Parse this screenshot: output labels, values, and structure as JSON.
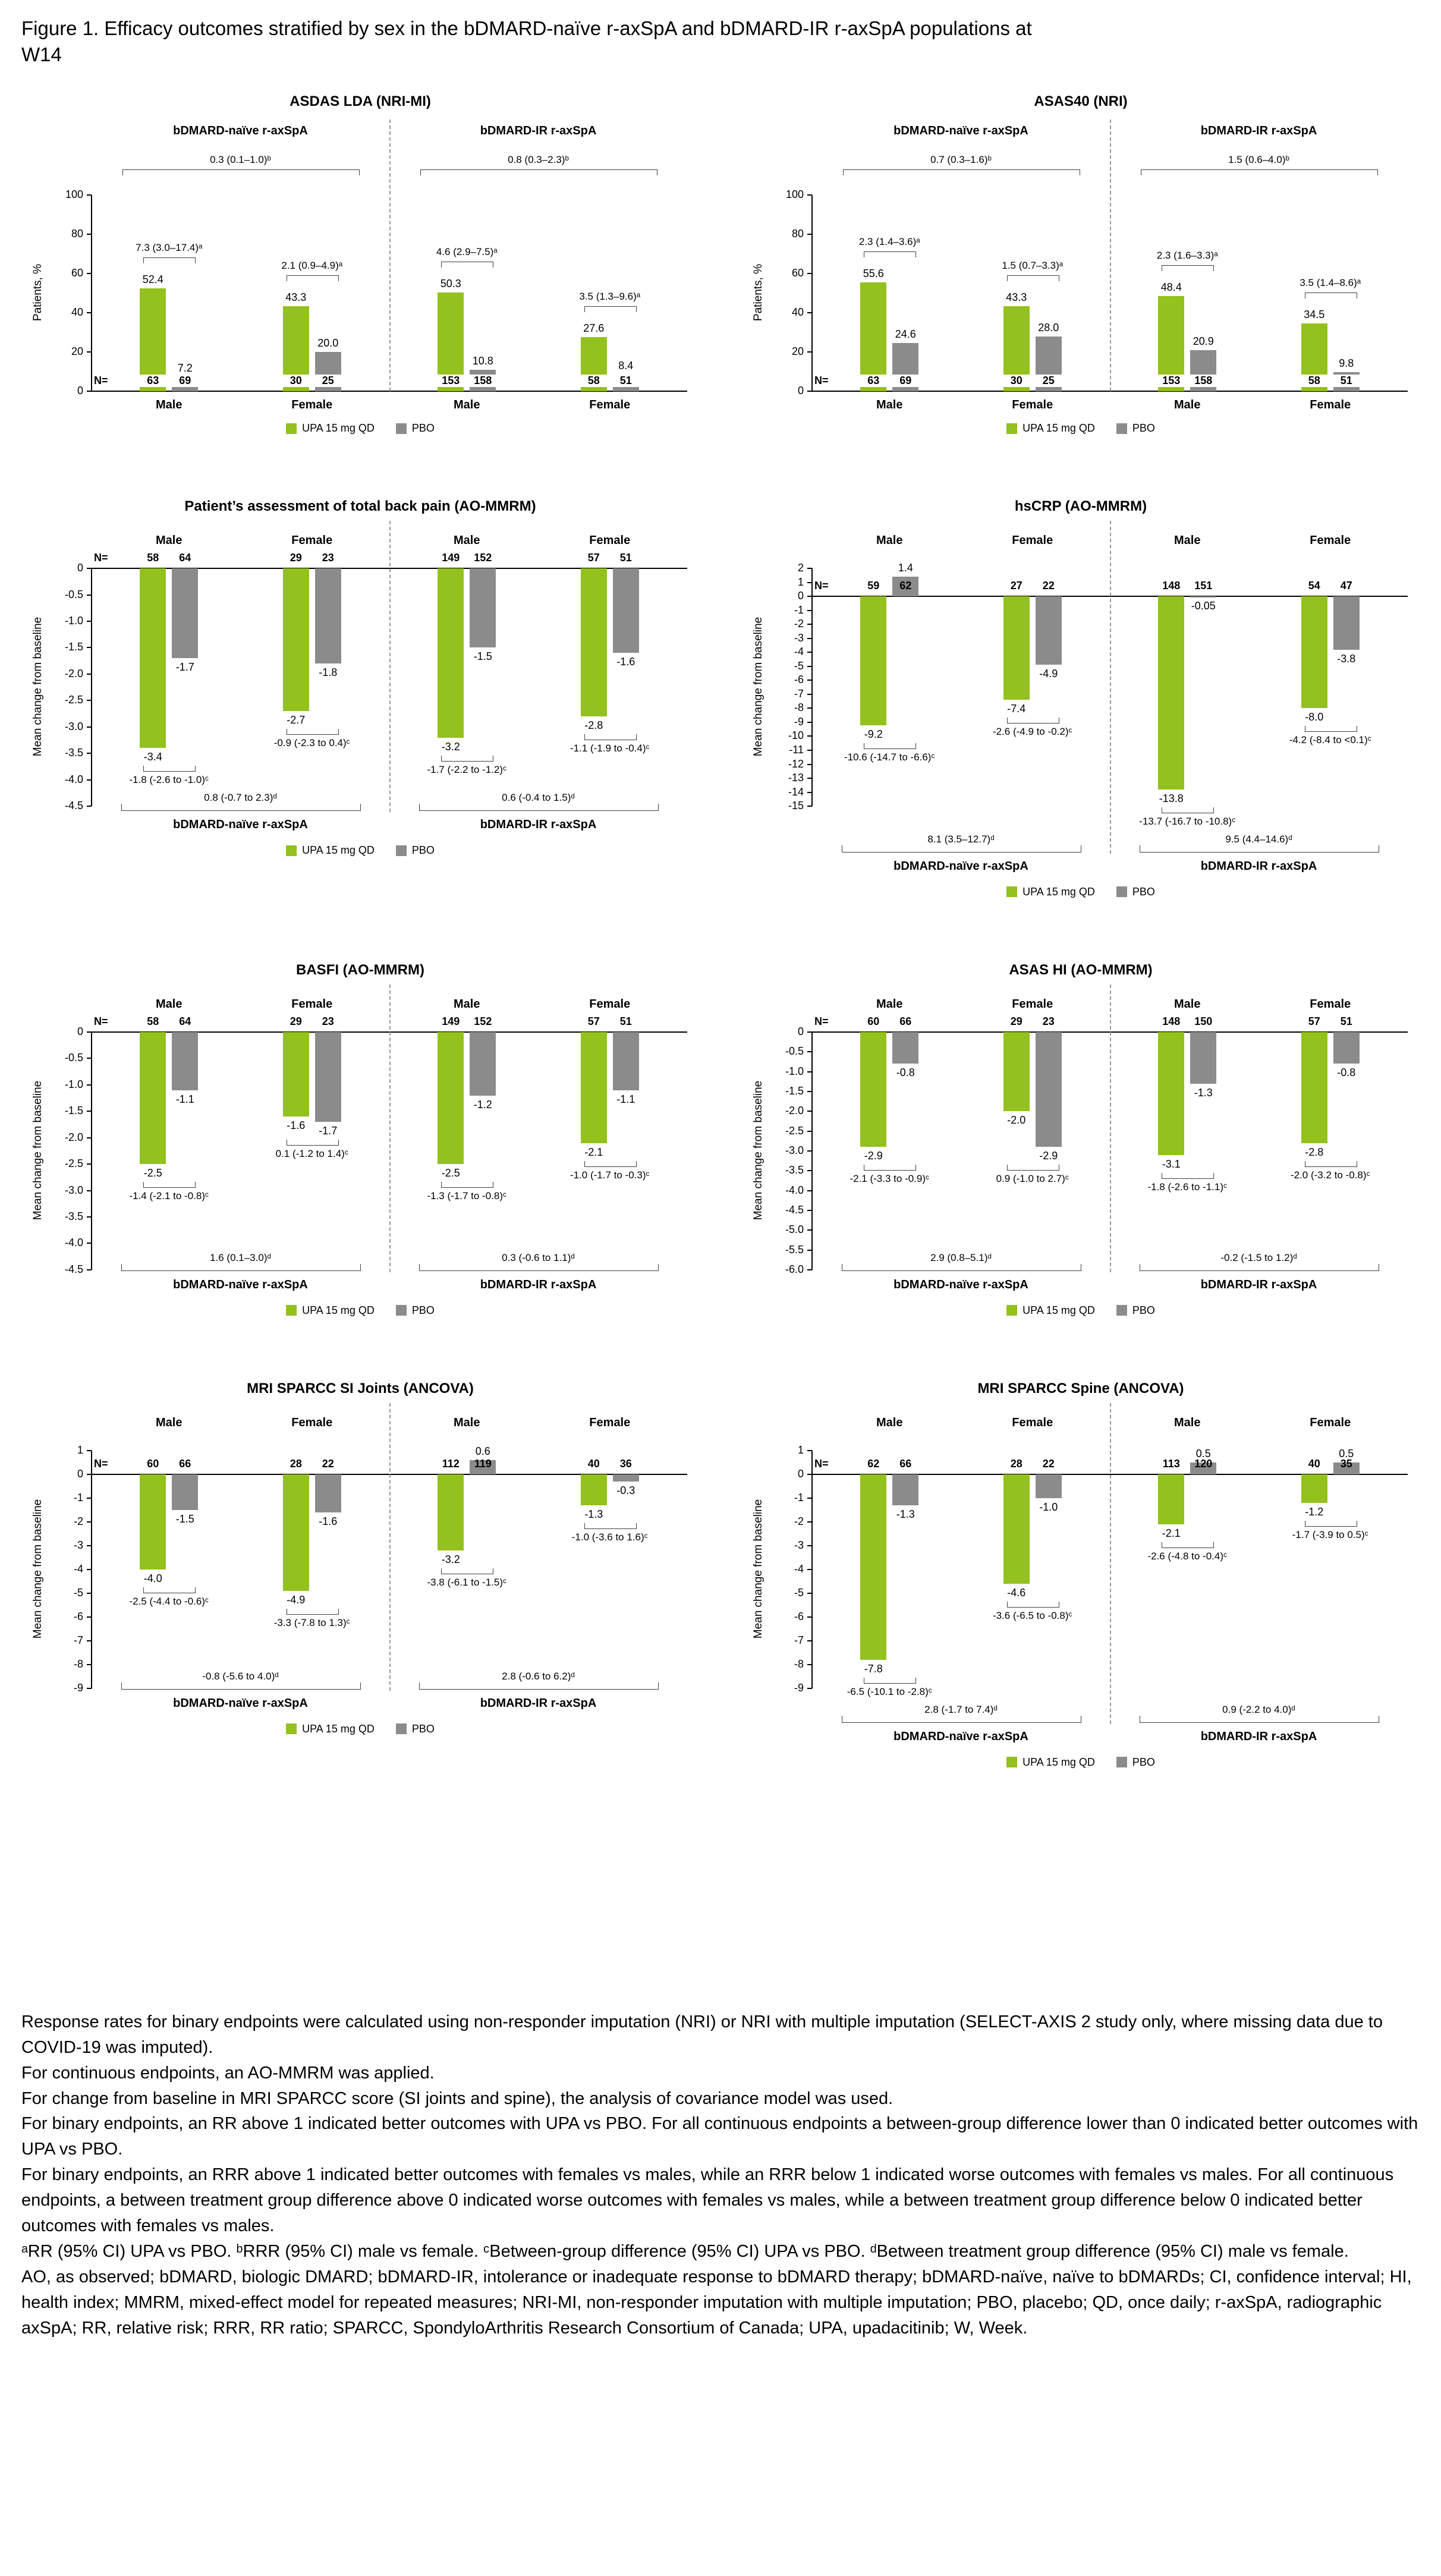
{
  "title": "Figure 1. Efficacy outcomes stratified by sex in the bDMARD-naïve r-axSpA and bDMARD-IR r-axSpA populations at W14",
  "labels": {
    "n_prefix": "N="
  },
  "legend": {
    "upa": "UPA 15 mg QD",
    "pbo": "PBO"
  },
  "colors": {
    "upa": "#93C11E",
    "pbo": "#8B8B8B",
    "bracket": "#3f3f3f"
  },
  "chart_data": [
    {
      "id": "asdas-lda",
      "type": "bar",
      "kind": "binary",
      "title": "ASDAS LDA (NRI-MI)",
      "ylabel": "Patients, %",
      "ymin": 0,
      "ymax": 100,
      "ytick_vals": [
        0,
        20,
        40,
        60,
        80,
        100
      ],
      "ytick_labels": [
        "0",
        "20",
        "40",
        "60",
        "80",
        "100"
      ],
      "populations": [
        {
          "label": "bDMARD-naïve r-axSpA",
          "pop_ann": "0.3 (0.1–1.0)ᵇ",
          "groups": [
            {
              "label": "Male",
              "upa": 52.4,
              "pbo": 7.2,
              "upa_label": "52.4",
              "pbo_label": "7.2",
              "upa_n": "63",
              "pbo_n": "69",
              "ann": "7.3 (3.0–17.4)ᵃ"
            },
            {
              "label": "Female",
              "upa": 43.3,
              "pbo": 20.0,
              "upa_label": "43.3",
              "pbo_label": "20.0",
              "upa_n": "30",
              "pbo_n": "25",
              "ann": "2.1 (0.9–4.9)ᵃ"
            }
          ]
        },
        {
          "label": "bDMARD-IR r-axSpA",
          "pop_ann": "0.8 (0.3–2.3)ᵇ",
          "groups": [
            {
              "label": "Male",
              "upa": 50.3,
              "pbo": 10.8,
              "upa_label": "50.3",
              "pbo_label": "10.8",
              "upa_n": "153",
              "pbo_n": "158",
              "ann": "4.6 (2.9–7.5)ᵃ"
            },
            {
              "label": "Female",
              "upa": 27.6,
              "pbo": 8.4,
              "upa_label": "27.6",
              "pbo_label": "8.4",
              "upa_n": "58",
              "pbo_n": "51",
              "ann": "3.5 (1.3–9.6)ᵃ"
            }
          ]
        }
      ]
    },
    {
      "id": "asas40",
      "type": "bar",
      "kind": "binary",
      "title": "ASAS40 (NRI)",
      "ylabel": "Patients, %",
      "ymin": 0,
      "ymax": 100,
      "ytick_vals": [
        0,
        20,
        40,
        60,
        80,
        100
      ],
      "ytick_labels": [
        "0",
        "20",
        "40",
        "60",
        "80",
        "100"
      ],
      "populations": [
        {
          "label": "bDMARD-naïve r-axSpA",
          "pop_ann": "0.7 (0.3–1.6)ᵇ",
          "groups": [
            {
              "label": "Male",
              "upa": 55.6,
              "pbo": 24.6,
              "upa_label": "55.6",
              "pbo_label": "24.6",
              "upa_n": "63",
              "pbo_n": "69",
              "ann": "2.3 (1.4–3.6)ᵃ"
            },
            {
              "label": "Female",
              "upa": 43.3,
              "pbo": 28.0,
              "upa_label": "43.3",
              "pbo_label": "28.0",
              "upa_n": "30",
              "pbo_n": "25",
              "ann": "1.5 (0.7–3.3)ᵃ"
            }
          ]
        },
        {
          "label": "bDMARD-IR r-axSpA",
          "pop_ann": "1.5 (0.6–4.0)ᵇ",
          "groups": [
            {
              "label": "Male",
              "upa": 48.4,
              "pbo": 20.9,
              "upa_label": "48.4",
              "pbo_label": "20.9",
              "upa_n": "153",
              "pbo_n": "158",
              "ann": "2.3 (1.6–3.3)ᵃ"
            },
            {
              "label": "Female",
              "upa": 34.5,
              "pbo": 9.8,
              "upa_label": "34.5",
              "pbo_label": "9.8",
              "upa_n": "58",
              "pbo_n": "51",
              "ann": "3.5 (1.4–8.6)ᵃ"
            }
          ]
        }
      ]
    },
    {
      "id": "back-pain",
      "type": "bar",
      "kind": "continuous",
      "title": "Patient’s assessment of total back pain (AO-MMRM)",
      "ylabel": "Mean change from baseline",
      "ymin": -4.5,
      "ymax": 0,
      "ytick_vals": [
        0,
        -0.5,
        -1,
        -1.5,
        -2,
        -2.5,
        -3,
        -3.5,
        -4,
        -4.5
      ],
      "ytick_labels": [
        "0",
        "-0.5",
        "-1.0",
        "-1.5",
        "-2.0",
        "-2.5",
        "-3.0",
        "-3.5",
        "-4.0",
        "-4.5"
      ],
      "populations": [
        {
          "label": "bDMARD-naïve r-axSpA",
          "pop_ann": "0.8 (-0.7 to 2.3)ᵈ",
          "groups": [
            {
              "label": "Male",
              "upa": -3.4,
              "pbo": -1.7,
              "upa_label": "-3.4",
              "pbo_label": "-1.7",
              "upa_n": "58",
              "pbo_n": "64",
              "ann": "-1.8 (-2.6 to -1.0)ᶜ"
            },
            {
              "label": "Female",
              "upa": -2.7,
              "pbo": -1.8,
              "upa_label": "-2.7",
              "pbo_label": "-1.8",
              "upa_n": "29",
              "pbo_n": "23",
              "ann": "-0.9 (-2.3 to 0.4)ᶜ"
            }
          ]
        },
        {
          "label": "bDMARD-IR r-axSpA",
          "pop_ann": "0.6 (-0.4 to 1.5)ᵈ",
          "groups": [
            {
              "label": "Male",
              "upa": -3.2,
              "pbo": -1.5,
              "upa_label": "-3.2",
              "pbo_label": "-1.5",
              "upa_n": "149",
              "pbo_n": "152",
              "ann": "-1.7 (-2.2 to -1.2)ᶜ"
            },
            {
              "label": "Female",
              "upa": -2.8,
              "pbo": -1.6,
              "upa_label": "-2.8",
              "pbo_label": "-1.6",
              "upa_n": "57",
              "pbo_n": "51",
              "ann": "-1.1 (-1.9 to -0.4)ᶜ"
            }
          ]
        }
      ]
    },
    {
      "id": "hscrp",
      "type": "bar",
      "kind": "continuous",
      "title": "hsCRP (AO-MMRM)",
      "ylabel": "Mean change from baseline",
      "ymin": -15,
      "ymax": 2,
      "ytick_vals": [
        2,
        1,
        0,
        -1,
        -2,
        -3,
        -4,
        -5,
        -6,
        -7,
        -8,
        -9,
        -10,
        -11,
        -12,
        -13,
        -14,
        -15
      ],
      "ytick_labels": [
        "2",
        "1",
        "0",
        "-1",
        "-2",
        "-3",
        "-4",
        "-5",
        "-6",
        "-7",
        "-8",
        "-9",
        "-10",
        "-11",
        "-12",
        "-13",
        "-14",
        "-15"
      ],
      "populations": [
        {
          "label": "bDMARD-naïve r-axSpA",
          "pop_ann": "8.1 (3.5–12.7)ᵈ",
          "groups": [
            {
              "label": "Male",
              "upa": -9.2,
              "pbo": 1.4,
              "upa_label": "-9.2",
              "pbo_label": "1.4",
              "upa_n": "59",
              "pbo_n": "62",
              "ann": "-10.6 (-14.7 to -6.6)ᶜ"
            },
            {
              "label": "Female",
              "upa": -7.4,
              "pbo": -4.9,
              "upa_label": "-7.4",
              "pbo_label": "-4.9",
              "upa_n": "27",
              "pbo_n": "22",
              "ann": "-2.6 (-4.9 to -0.2)ᶜ"
            }
          ]
        },
        {
          "label": "bDMARD-IR r-axSpA",
          "pop_ann": "9.5 (4.4–14.6)ᵈ",
          "groups": [
            {
              "label": "Male",
              "upa": -13.8,
              "pbo": -0.05,
              "upa_label": "-13.8",
              "pbo_label": "-0.05",
              "upa_n": "148",
              "pbo_n": "151",
              "ann": "-13.7 (-16.7 to -10.8)ᶜ"
            },
            {
              "label": "Female",
              "upa": -8.0,
              "pbo": -3.8,
              "upa_label": "-8.0",
              "pbo_label": "-3.8",
              "upa_n": "54",
              "pbo_n": "47",
              "ann": "-4.2 (-8.4 to <0.1)ᶜ"
            }
          ]
        }
      ]
    },
    {
      "id": "basfi",
      "type": "bar",
      "kind": "continuous",
      "title": "BASFI (AO-MMRM)",
      "ylabel": "Mean change from baseline",
      "ymin": -4.5,
      "ymax": 0,
      "ytick_vals": [
        0,
        -0.5,
        -1,
        -1.5,
        -2,
        -2.5,
        -3,
        -3.5,
        -4,
        -4.5
      ],
      "ytick_labels": [
        "0",
        "-0.5",
        "-1.0",
        "-1.5",
        "-2.0",
        "-2.5",
        "-3.0",
        "-3.5",
        "-4.0",
        "-4.5"
      ],
      "populations": [
        {
          "label": "bDMARD-naïve r-axSpA",
          "pop_ann": "1.6 (0.1–3.0)ᵈ",
          "groups": [
            {
              "label": "Male",
              "upa": -2.5,
              "pbo": -1.1,
              "upa_label": "-2.5",
              "pbo_label": "-1.1",
              "upa_n": "58",
              "pbo_n": "64",
              "ann": "-1.4 (-2.1 to -0.8)ᶜ"
            },
            {
              "label": "Female",
              "upa": -1.6,
              "pbo": -1.7,
              "upa_label": "-1.6",
              "pbo_label": "-1.7",
              "upa_n": "29",
              "pbo_n": "23",
              "ann": "0.1 (-1.2 to 1.4)ᶜ"
            }
          ]
        },
        {
          "label": "bDMARD-IR r-axSpA",
          "pop_ann": "0.3 (-0.6 to 1.1)ᵈ",
          "groups": [
            {
              "label": "Male",
              "upa": -2.5,
              "pbo": -1.2,
              "upa_label": "-2.5",
              "pbo_label": "-1.2",
              "upa_n": "149",
              "pbo_n": "152",
              "ann": "-1.3 (-1.7 to -0.8)ᶜ"
            },
            {
              "label": "Female",
              "upa": -2.1,
              "pbo": -1.1,
              "upa_label": "-2.1",
              "pbo_label": "-1.1",
              "upa_n": "57",
              "pbo_n": "51",
              "ann": "-1.0 (-1.7 to -0.3)ᶜ"
            }
          ]
        }
      ]
    },
    {
      "id": "asas-hi",
      "type": "bar",
      "kind": "continuous",
      "title": "ASAS HI (AO-MMRM)",
      "ylabel": "Mean change from baseline",
      "ymin": -6,
      "ymax": 0,
      "ytick_vals": [
        0,
        -0.5,
        -1,
        -1.5,
        -2,
        -2.5,
        -3,
        -3.5,
        -4,
        -4.5,
        -5,
        -5.5,
        -6
      ],
      "ytick_labels": [
        "0",
        "-0.5",
        "-1.0",
        "-1.5",
        "-2.0",
        "-2.5",
        "-3.0",
        "-3.5",
        "-4.0",
        "-4.5",
        "-5.0",
        "-5.5",
        "-6.0"
      ],
      "populations": [
        {
          "label": "bDMARD-naïve r-axSpA",
          "pop_ann": "2.9 (0.8–5.1)ᵈ",
          "groups": [
            {
              "label": "Male",
              "upa": -2.9,
              "pbo": -0.8,
              "upa_label": "-2.9",
              "pbo_label": "-0.8",
              "upa_n": "60",
              "pbo_n": "66",
              "ann": "-2.1 (-3.3 to -0.9)ᶜ"
            },
            {
              "label": "Female",
              "upa": -2.0,
              "pbo": -2.9,
              "upa_label": "-2.0",
              "pbo_label": "-2.9",
              "upa_n": "29",
              "pbo_n": "23",
              "ann": "0.9 (-1.0 to 2.7)ᶜ"
            }
          ]
        },
        {
          "label": "bDMARD-IR r-axSpA",
          "pop_ann": "-0.2 (-1.5 to 1.2)ᵈ",
          "groups": [
            {
              "label": "Male",
              "upa": -3.1,
              "pbo": -1.3,
              "upa_label": "-3.1",
              "pbo_label": "-1.3",
              "upa_n": "148",
              "pbo_n": "150",
              "ann": "-1.8 (-2.6 to -1.1)ᶜ"
            },
            {
              "label": "Female",
              "upa": -2.8,
              "pbo": -0.8,
              "upa_label": "-2.8",
              "pbo_label": "-0.8",
              "upa_n": "57",
              "pbo_n": "51",
              "ann": "-2.0 (-3.2 to -0.8)ᶜ"
            }
          ]
        }
      ]
    },
    {
      "id": "mri-sparcc-si",
      "type": "bar",
      "kind": "continuous",
      "title": "MRI SPARCC SI Joints (ANCOVA)",
      "ylabel": "Mean change from baseline",
      "ymin": -9,
      "ymax": 1,
      "ytick_vals": [
        1,
        0,
        -1,
        -2,
        -3,
        -4,
        -5,
        -6,
        -7,
        -8,
        -9
      ],
      "ytick_labels": [
        "1",
        "0",
        "-1",
        "-2",
        "-3",
        "-4",
        "-5",
        "-6",
        "-7",
        "-8",
        "-9"
      ],
      "populations": [
        {
          "label": "bDMARD-naïve r-axSpA",
          "pop_ann": "-0.8 (-5.6 to 4.0)ᵈ",
          "groups": [
            {
              "label": "Male",
              "upa": -4.0,
              "pbo": -1.5,
              "upa_label": "-4.0",
              "pbo_label": "-1.5",
              "upa_n": "60",
              "pbo_n": "66",
              "ann": "-2.5 (-4.4 to -0.6)ᶜ"
            },
            {
              "label": "Female",
              "upa": -4.9,
              "pbo": -1.6,
              "upa_label": "-4.9",
              "pbo_label": "-1.6",
              "upa_n": "28",
              "pbo_n": "22",
              "ann": "-3.3 (-7.8 to 1.3)ᶜ"
            }
          ]
        },
        {
          "label": "bDMARD-IR r-axSpA",
          "pop_ann": "2.8 (-0.6 to 6.2)ᵈ",
          "groups": [
            {
              "label": "Male",
              "upa": -3.2,
              "pbo": 0.6,
              "upa_label": "-3.2",
              "pbo_label": "0.6",
              "upa_n": "112",
              "pbo_n": "119",
              "ann": "-3.8 (-6.1 to -1.5)ᶜ"
            },
            {
              "label": "Female",
              "upa": -1.3,
              "pbo": -0.3,
              "upa_label": "-1.3",
              "pbo_label": "-0.3",
              "upa_n": "40",
              "pbo_n": "36",
              "ann": "-1.0 (-3.6 to 1.6)ᶜ"
            }
          ]
        }
      ]
    },
    {
      "id": "mri-sparcc-spine",
      "type": "bar",
      "kind": "continuous",
      "title": "MRI SPARCC Spine (ANCOVA)",
      "ylabel": "Mean change from baseline",
      "ymin": -9,
      "ymax": 1,
      "ytick_vals": [
        1,
        0,
        -1,
        -2,
        -3,
        -4,
        -5,
        -6,
        -7,
        -8,
        -9
      ],
      "ytick_labels": [
        "1",
        "0",
        "-1",
        "-2",
        "-3",
        "-4",
        "-5",
        "-6",
        "-7",
        "-8",
        "-9"
      ],
      "populations": [
        {
          "label": "bDMARD-naïve r-axSpA",
          "pop_ann": "2.8 (-1.7 to 7.4)ᵈ",
          "groups": [
            {
              "label": "Male",
              "upa": -7.8,
              "pbo": -1.3,
              "upa_label": "-7.8",
              "pbo_label": "-1.3",
              "upa_n": "62",
              "pbo_n": "66",
              "ann": "-6.5 (-10.1 to -2.8)ᶜ"
            },
            {
              "label": "Female",
              "upa": -4.6,
              "pbo": -1.0,
              "upa_label": "-4.6",
              "pbo_label": "-1.0",
              "upa_n": "28",
              "pbo_n": "22",
              "ann": "-3.6 (-6.5 to -0.8)ᶜ"
            }
          ]
        },
        {
          "label": "bDMARD-IR r-axSpA",
          "pop_ann": "0.9 (-2.2 to 4.0)ᵈ",
          "groups": [
            {
              "label": "Male",
              "upa": -2.1,
              "pbo": 0.5,
              "upa_label": "-2.1",
              "pbo_label": "0.5",
              "upa_n": "113",
              "pbo_n": "120",
              "ann": "-2.6 (-4.8 to -0.4)ᶜ"
            },
            {
              "label": "Female",
              "upa": -1.2,
              "pbo": 0.5,
              "upa_label": "-1.2",
              "pbo_label": "0.5",
              "upa_n": "40",
              "pbo_n": "35",
              "ann": "-1.7 (-3.9 to 0.5)ᶜ"
            }
          ]
        }
      ]
    }
  ],
  "footnotes": [
    "Response rates for binary endpoints were calculated using non-responder imputation (NRI) or NRI with multiple imputation (SELECT-AXIS 2 study only, where missing data due to COVID-19 was imputed).",
    "For continuous endpoints, an AO-MMRM was applied.",
    "For change from baseline in MRI SPARCC score (SI joints and spine), the analysis of covariance model was used.",
    "For binary endpoints, an RR above 1 indicated better outcomes with UPA vs PBO. For all continuous endpoints a between-group difference lower than 0 indicated better outcomes with UPA vs PBO.",
    "For binary endpoints, an RRR above 1 indicated better outcomes with females vs males, while an RRR below 1 indicated worse outcomes with females vs males. For all continuous endpoints, a between treatment group difference above 0 indicated worse outcomes with females vs males, while a between treatment group difference below 0 indicated better outcomes with females vs males.",
    "ᵃRR (95% CI) UPA vs PBO. ᵇRRR (95% CI) male vs female. ᶜBetween-group difference (95% CI) UPA vs PBO. ᵈBetween treatment group difference (95% CI) male vs female.",
    "AO, as observed; bDMARD, biologic DMARD; bDMARD-IR, intolerance or inadequate response to bDMARD therapy; bDMARD-naïve, naïve to bDMARDs; CI, confidence interval; HI, health index; MMRM, mixed-effect model for repeated measures; NRI-MI, non-responder imputation with multiple imputation; PBO, placebo; QD, once daily; r-axSpA, radiographic axSpA; RR, relative risk; RRR, RR ratio; SPARCC, SpondyloArthritis Research Consortium of Canada; UPA, upadacitinib; W, Week."
  ]
}
